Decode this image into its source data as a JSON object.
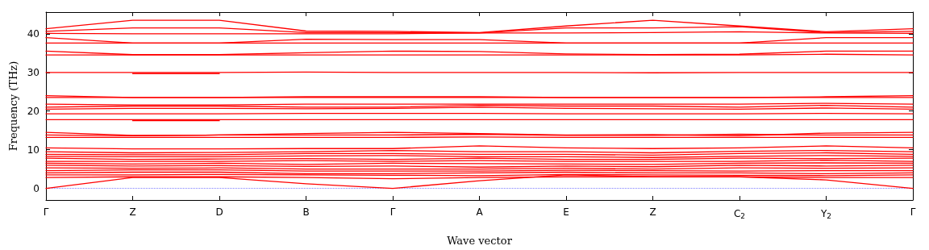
{
  "chart_data": {
    "type": "line",
    "xlabel": "Wave vector",
    "ylabel": "Frequency (THz)",
    "marker": "none",
    "line_style": "solid",
    "categories": [
      "Γ",
      "Z",
      "D",
      "B",
      "Γ",
      "A",
      "E",
      "Z",
      "C$_{2}$",
      "Y$_{2}$",
      "Γ"
    ],
    "ylim": [
      -3,
      45.6
    ],
    "yticks": [
      0,
      10,
      20,
      30,
      40
    ],
    "ref_lines": [
      {
        "axis": "y",
        "value": 0,
        "label": null,
        "color": "#7f7fff",
        "line_style": "dotted"
      }
    ],
    "series": [
      {
        "color": "#ff0000",
        "values": [
          41.3,
          43.5,
          43.5,
          40.7,
          40.6,
          40.3,
          42,
          43.5,
          42,
          40.5,
          41.3
        ]
      },
      {
        "color": "#ff0000",
        "values": [
          40.6,
          41.5,
          41.5,
          40.3,
          40.3,
          40.2,
          41.5,
          41.5,
          41.8,
          40.3,
          40.6
        ]
      },
      {
        "color": "#ff0000",
        "values": [
          40.1,
          40,
          40,
          40,
          40,
          40.2,
          40.2,
          40.3,
          40.5,
          40.2,
          40.1
        ]
      },
      {
        "color": "#ff0000",
        "values": [
          39,
          37.6,
          37.6,
          38.6,
          38.5,
          38.5,
          37.6,
          37.6,
          37.6,
          39,
          39
        ]
      },
      {
        "color": "#ff0000",
        "values": [
          37.6,
          37.6,
          37.6,
          37.6,
          37.6,
          37.6,
          37.6,
          37.6,
          37.6,
          37.6,
          37.6
        ]
      },
      {
        "color": "#ff0000",
        "values": [
          35.5,
          34.6,
          34.6,
          35.1,
          35.5,
          35.4,
          34.8,
          34.6,
          34.7,
          35.5,
          35.5
        ]
      },
      {
        "color": "#ff0000",
        "values": [
          34.5,
          34.5,
          34.5,
          34.5,
          34.5,
          34.5,
          34.5,
          34.5,
          34.5,
          34.7,
          34.5
        ]
      },
      {
        "color": "#ff0000",
        "values": [
          30,
          30,
          30,
          30.1,
          30,
          30,
          30,
          29.9,
          30,
          30,
          30
        ]
      },
      {
        "color": "#ff0000",
        "values": [
          null,
          29.7,
          29.7,
          null,
          null,
          null,
          null,
          null,
          null,
          null,
          null
        ]
      },
      {
        "color": "#ff0000",
        "values": [
          24,
          23.5,
          23.5,
          23.7,
          23.7,
          23.7,
          23.5,
          23.5,
          23.5,
          23.7,
          24
        ]
      },
      {
        "color": "#ff0000",
        "values": [
          23.5,
          23.5,
          23.5,
          23.5,
          23.5,
          23.5,
          23.5,
          23.5,
          23.5,
          23.5,
          23.5
        ]
      },
      {
        "color": "#ff0000",
        "values": [
          21.8,
          21.6,
          21.6,
          21.8,
          21.8,
          21.8,
          21.8,
          21.8,
          21.8,
          22,
          21.8
        ]
      },
      {
        "color": "#ff0000",
        "values": [
          21,
          21.3,
          21.3,
          21,
          21,
          21.5,
          21.3,
          21.3,
          21,
          21.5,
          21
        ]
      },
      {
        "color": "#ff0000",
        "values": [
          20.5,
          20.7,
          20.7,
          20.6,
          20.7,
          21,
          20.7,
          20.6,
          20.5,
          20.8,
          20.5
        ]
      },
      {
        "color": "#ff0000",
        "values": [
          19.3,
          19.3,
          19.3,
          19.4,
          19.4,
          19.4,
          19.3,
          19.3,
          19.3,
          19.4,
          19.3
        ]
      },
      {
        "color": "#ff0000",
        "values": [
          null,
          17.5,
          17.5,
          null,
          null,
          null,
          null,
          null,
          null,
          null,
          null
        ]
      },
      {
        "color": "#ff0000",
        "values": [
          17.8,
          17.8,
          17.8,
          17.8,
          17.8,
          17.8,
          17.8,
          17.8,
          17.8,
          17.8,
          17.8
        ]
      },
      {
        "color": "#ff0000",
        "values": [
          14.5,
          13.7,
          13.8,
          14.2,
          14.5,
          14.2,
          13.8,
          13.9,
          13.6,
          14.3,
          14.5
        ]
      },
      {
        "color": "#ff0000",
        "values": [
          13.8,
          13.6,
          13.8,
          13.8,
          13.8,
          14,
          13.7,
          13.7,
          14,
          13.8,
          13.8
        ]
      },
      {
        "color": "#ff0000",
        "values": [
          13.2,
          13.2,
          13.2,
          13.2,
          13.2,
          13.3,
          13.2,
          13.2,
          13.2,
          13.2,
          13.2
        ]
      },
      {
        "color": "#ff0000",
        "values": [
          10.5,
          10.2,
          10.2,
          10.3,
          10.3,
          11,
          10.5,
          10.3,
          10.5,
          11,
          10.5
        ]
      },
      {
        "color": "#ff0000",
        "values": [
          9.5,
          9.2,
          9.3,
          9.5,
          9.8,
          9.5,
          9.5,
          9.2,
          9.6,
          9.8,
          9.5
        ]
      },
      {
        "color": "#ff0000",
        "values": [
          8.8,
          8.7,
          8.7,
          9,
          9,
          8.8,
          8.8,
          8.6,
          9,
          9.2,
          8.8
        ]
      },
      {
        "color": "#ff0000",
        "values": [
          8.3,
          8.2,
          8.2,
          8.4,
          8.5,
          8.2,
          8.2,
          8,
          8.3,
          8.5,
          8.3
        ]
      },
      {
        "color": "#ff0000",
        "values": [
          7.8,
          7.5,
          7.6,
          7.7,
          7.5,
          7.8,
          7.5,
          7.5,
          7.8,
          7.7,
          7.8
        ]
      },
      {
        "color": "#ff0000",
        "values": [
          7,
          7,
          7,
          7.2,
          7,
          7.2,
          7,
          7,
          7,
          7.3,
          7
        ]
      },
      {
        "color": "#ff0000",
        "values": [
          6.5,
          6.3,
          6.5,
          6.2,
          6.5,
          6.4,
          6.3,
          6.2,
          6.5,
          6.6,
          6.5
        ]
      },
      {
        "color": "#ff0000",
        "values": [
          6,
          5.8,
          5.9,
          5.7,
          5.8,
          5.5,
          5.8,
          5.6,
          6,
          5.8,
          6
        ]
      },
      {
        "color": "#ff0000",
        "values": [
          5.3,
          5.2,
          5.3,
          5,
          5,
          5,
          5.2,
          5,
          5.3,
          5.2,
          5.3
        ]
      },
      {
        "color": "#ff0000",
        "values": [
          4.6,
          4.8,
          4.8,
          4.5,
          4.5,
          4.5,
          4.7,
          4.6,
          4.5,
          4.6,
          4.6
        ]
      },
      {
        "color": "#ff0000",
        "values": [
          4,
          4.2,
          4.2,
          3.8,
          3.8,
          4,
          4.2,
          4,
          4,
          3.8,
          4
        ]
      },
      {
        "color": "#ff0000",
        "values": [
          3.5,
          3.5,
          3.6,
          3.5,
          3.4,
          3.3,
          3.6,
          3.5,
          3.4,
          3.3,
          3.5
        ]
      },
      {
        "color": "#ff0000",
        "values": [
          2.8,
          3,
          3,
          2.8,
          2.5,
          2.8,
          3,
          3,
          3,
          2.8,
          2.8
        ]
      },
      {
        "color": "#ff0000",
        "values": [
          0,
          2.8,
          2.8,
          1.2,
          0,
          2,
          3.5,
          3,
          3,
          2.2,
          0
        ]
      }
    ]
  }
}
